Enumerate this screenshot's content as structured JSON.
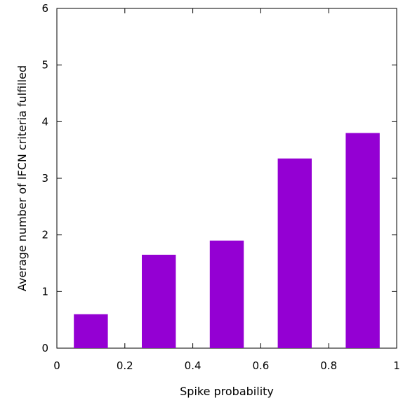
{
  "chart_data": {
    "type": "bar",
    "xlabel": "Spike probability",
    "ylabel": "Average number of IFCN criteria fulfilled",
    "xlim": [
      0,
      1
    ],
    "ylim": [
      0,
      6
    ],
    "x_ticks": [
      "0",
      "0.2",
      "0.4",
      "0.6",
      "0.8",
      "1"
    ],
    "y_ticks": [
      "0",
      "1",
      "2",
      "3",
      "4",
      "5",
      "6"
    ],
    "bars": [
      {
        "x_from": 0.05,
        "x_to": 0.15,
        "value": 0.6
      },
      {
        "x_from": 0.25,
        "x_to": 0.35,
        "value": 1.65
      },
      {
        "x_from": 0.45,
        "x_to": 0.55,
        "value": 1.9
      },
      {
        "x_from": 0.65,
        "x_to": 0.75,
        "value": 3.35
      },
      {
        "x_from": 0.85,
        "x_to": 0.95,
        "value": 3.8
      }
    ],
    "bar_color": "#9400d3",
    "grid": false
  }
}
